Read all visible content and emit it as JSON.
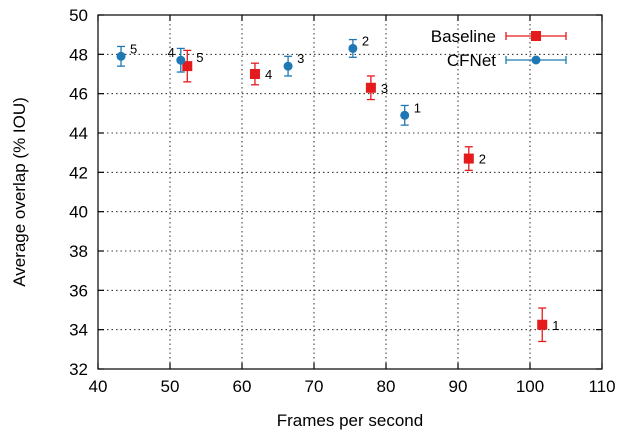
{
  "chart_data": {
    "type": "scatter",
    "xlabel": "Frames per second",
    "ylabel": "Average overlap (% IOU)",
    "xlim": [
      40,
      110
    ],
    "ylim": [
      32,
      50
    ],
    "xticks": [
      40,
      50,
      60,
      70,
      80,
      90,
      100,
      110
    ],
    "yticks": [
      32,
      34,
      36,
      38,
      40,
      42,
      44,
      46,
      48,
      50
    ],
    "grid": true,
    "error_bars": true,
    "legend_position": "top-right",
    "series": [
      {
        "name": "Baseline",
        "color": "#e41a1c",
        "marker": "square",
        "points": [
          {
            "x": 101.7,
            "y": 34.25,
            "yerr": 0.85,
            "xerr": 4.0,
            "label": "1"
          },
          {
            "x": 91.5,
            "y": 42.7,
            "yerr": 0.6,
            "xerr": 3.0,
            "label": "2"
          },
          {
            "x": 77.9,
            "y": 46.3,
            "yerr": 0.6,
            "xerr": 3.0,
            "label": "3"
          },
          {
            "x": 61.8,
            "y": 47.0,
            "yerr": 0.55,
            "xerr": 3.0,
            "label": "4"
          },
          {
            "x": 52.4,
            "y": 47.4,
            "yerr": 0.8,
            "xerr": 3.0,
            "label": "5"
          }
        ]
      },
      {
        "name": "CFNet",
        "color": "#1f78b4",
        "marker": "circle",
        "points": [
          {
            "x": 82.6,
            "y": 44.9,
            "yerr": 0.5,
            "xerr": 3.0,
            "label": "1"
          },
          {
            "x": 75.4,
            "y": 48.3,
            "yerr": 0.45,
            "xerr": 3.0,
            "label": "2"
          },
          {
            "x": 66.4,
            "y": 47.4,
            "yerr": 0.5,
            "xerr": 3.0,
            "label": "3"
          },
          {
            "x": 51.5,
            "y": 47.7,
            "yerr": 0.6,
            "xerr": 3.0,
            "label": "4"
          },
          {
            "x": 43.2,
            "y": 47.9,
            "yerr": 0.5,
            "xerr": 3.0,
            "label": "5"
          }
        ]
      }
    ]
  }
}
